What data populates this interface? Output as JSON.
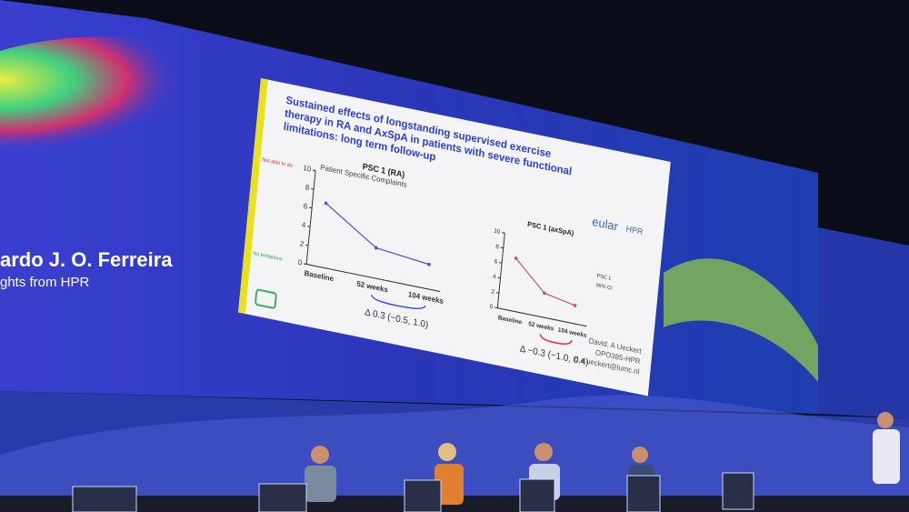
{
  "speaker": {
    "name": "ardo J. O. Ferreira",
    "subtitle": "ghts from HPR"
  },
  "slide": {
    "title_lines": [
      "Sustained effects of longstanding supervised exercise",
      "therapy in RA and AxSpA in patients with severe functional",
      "limitations: long term follow-up"
    ],
    "logo": {
      "main": "eular",
      "sub": "HPR"
    },
    "charts": [
      {
        "title": "PSC 1 (RA)",
        "subtitle": "Patient Specific Complaints",
        "top_note": "Not able to do",
        "bottom_note": "No limitations",
        "yticks": [
          "10",
          "8",
          "6",
          "4",
          "2",
          "0"
        ],
        "categories": [
          "Baseline",
          "52 weeks",
          "104 weeks"
        ],
        "values": [
          6.8,
          3.2,
          2.6
        ],
        "color": "#4a4fd0",
        "annotation": "Δ 0.3 (−0.5, 1.0)",
        "brace_color": "#3b4fe0"
      },
      {
        "title": "PSC 1 (axSpA)",
        "yticks": [
          "10",
          "8",
          "6",
          "4",
          "2",
          "0"
        ],
        "categories": [
          "Baseline",
          "52 weeks",
          "104 weeks"
        ],
        "values": [
          7.0,
          3.2,
          2.4
        ],
        "color": "#c8506a",
        "legend": [
          "PSC 1",
          "95% CI"
        ],
        "annotation": "Δ −0.3 (−1.0, 0.4)",
        "brace_color": "#e0304a"
      }
    ],
    "footer": [
      "David. A Ueckert",
      "OPO385-HPR",
      "d.a.ueckert@lumc.nl"
    ]
  }
}
